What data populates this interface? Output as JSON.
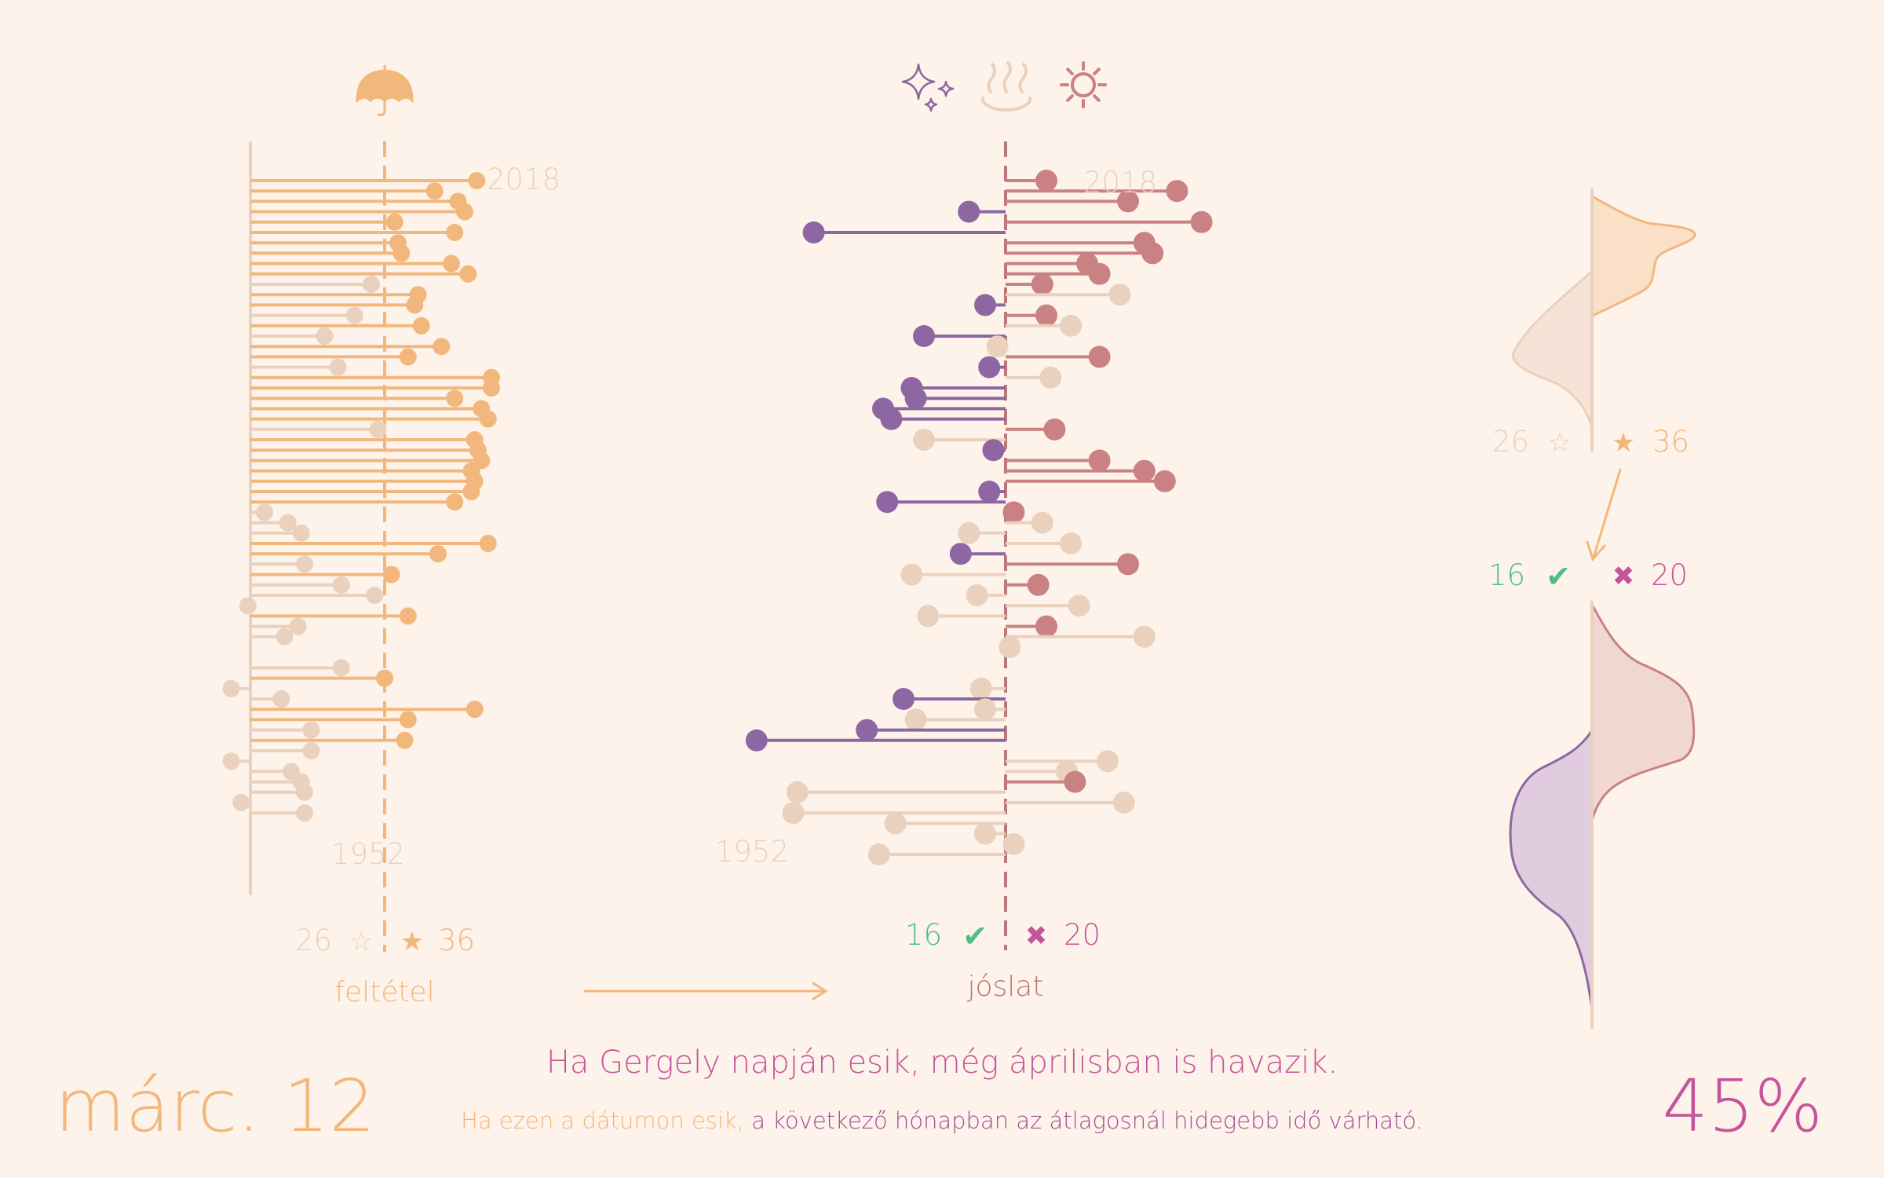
{
  "colors": {
    "background": "#fdf3ea",
    "condition_active": "#f2b77c",
    "condition_faded": "#ead1bd",
    "cold": "#8e67a2",
    "warm": "#c98183",
    "faded": "#ead1bd",
    "success": "#4dbf86",
    "fail": "#c4559a",
    "warm_axis": "#b9787a"
  },
  "icons": {
    "condition": "umbrella-icon",
    "forecast": [
      "sparkles-icon",
      "hot-spring-icon",
      "sun-icon"
    ]
  },
  "left_panel": {
    "year_top": "2018",
    "year_bottom": "1952",
    "count_no": "26",
    "count_yes": "36",
    "star_empty": "☆",
    "star_full": "★",
    "axis_label": "feltétel"
  },
  "center_panel": {
    "year_top": "2018",
    "year_bottom": "1952",
    "count_correct": "16",
    "count_wrong": "20",
    "check": "✔",
    "cross": "✖",
    "axis_label": "jóslat"
  },
  "right_panel": {
    "count_no": "26",
    "count_yes": "36",
    "count_correct": "16",
    "count_wrong": "20",
    "star_empty": "☆",
    "star_full": "★",
    "check": "✔",
    "cross": "✖"
  },
  "footer": {
    "date": "márc. 12",
    "proverb": "Ha Gergely napján esik, még áprilisban is havazik.",
    "explain_condition": "Ha ezen a dátumon esik,",
    "explain_result": "a következő hónapban az átlagosnál hidegebb idő várható.",
    "percent": "45%"
  },
  "chart_data": [
    {
      "type": "scatter",
      "title": "",
      "x_label": "feltétel",
      "y_label": "",
      "y_range": [
        1952,
        2018
      ],
      "series": [
        {
          "name": "",
          "points": [
            {
              "year": 2018,
              "value": 1.38,
              "active": true
            },
            {
              "year": 2017,
              "value": 0.75,
              "active": true
            },
            {
              "year": 2016,
              "value": 1.1,
              "active": true
            },
            {
              "year": 2015,
              "value": 1.2,
              "active": true
            },
            {
              "year": 2014,
              "value": 0.15,
              "active": true
            },
            {
              "year": 2013,
              "value": 1.05,
              "active": true
            },
            {
              "year": 2012,
              "value": 0.2,
              "active": true
            },
            {
              "year": 2011,
              "value": 0.25,
              "active": true
            },
            {
              "year": 2010,
              "value": 1.0,
              "active": true
            },
            {
              "year": 2009,
              "value": 1.25,
              "active": true
            },
            {
              "year": 2008,
              "value": -0.2,
              "active": false
            },
            {
              "year": 2007,
              "value": 0.5,
              "active": true
            },
            {
              "year": 2006,
              "value": 0.45,
              "active": true
            },
            {
              "year": 2005,
              "value": -0.45,
              "active": false
            },
            {
              "year": 2004,
              "value": 0.55,
              "active": true
            },
            {
              "year": 2003,
              "value": -0.9,
              "active": false
            },
            {
              "year": 2002,
              "value": 0.85,
              "active": true
            },
            {
              "year": 2001,
              "value": 0.35,
              "active": true
            },
            {
              "year": 2000,
              "value": -0.7,
              "active": false
            },
            {
              "year": 1999,
              "value": 1.6,
              "active": true
            },
            {
              "year": 1998,
              "value": 1.6,
              "active": true
            },
            {
              "year": 1997,
              "value": 1.05,
              "active": true
            },
            {
              "year": 1996,
              "value": 1.45,
              "active": true
            },
            {
              "year": 1995,
              "value": 1.55,
              "active": true
            },
            {
              "year": 1994,
              "value": -0.1,
              "active": false
            },
            {
              "year": 1993,
              "value": 1.35,
              "active": true
            },
            {
              "year": 1992,
              "value": 1.4,
              "active": true
            },
            {
              "year": 1991,
              "value": 1.45,
              "active": true
            },
            {
              "year": 1990,
              "value": 1.3,
              "active": true
            },
            {
              "year": 1989,
              "value": 1.35,
              "active": true
            },
            {
              "year": 1988,
              "value": 1.3,
              "active": true
            },
            {
              "year": 1987,
              "value": 1.05,
              "active": true
            },
            {
              "year": 1986,
              "value": -1.8,
              "active": false
            },
            {
              "year": 1985,
              "value": -1.45,
              "active": false
            },
            {
              "year": 1984,
              "value": -1.25,
              "active": false
            },
            {
              "year": 1983,
              "value": 1.55,
              "active": true
            },
            {
              "year": 1982,
              "value": 0.8,
              "active": true
            },
            {
              "year": 1981,
              "value": -1.2,
              "active": false
            },
            {
              "year": 1980,
              "value": 0.1,
              "active": true
            },
            {
              "year": 1979,
              "value": -0.65,
              "active": false
            },
            {
              "year": 1978,
              "value": -0.15,
              "active": false
            },
            {
              "year": 1977,
              "value": -2.05,
              "active": false
            },
            {
              "year": 1976,
              "value": 0.35,
              "active": true
            },
            {
              "year": 1975,
              "value": -1.3,
              "active": false
            },
            {
              "year": 1974,
              "value": -1.5,
              "active": false
            },
            {
              "year": 1971,
              "value": -0.65,
              "active": false
            },
            {
              "year": 1970,
              "value": 0.0,
              "active": true
            },
            {
              "year": 1969,
              "value": -2.3,
              "active": false
            },
            {
              "year": 1968,
              "value": -1.55,
              "active": false
            },
            {
              "year": 1967,
              "value": 1.35,
              "active": true
            },
            {
              "year": 1966,
              "value": 0.35,
              "active": true
            },
            {
              "year": 1965,
              "value": -1.1,
              "active": false
            },
            {
              "year": 1964,
              "value": 0.3,
              "active": true
            },
            {
              "year": 1963,
              "value": -1.1,
              "active": false
            },
            {
              "year": 1962,
              "value": -2.3,
              "active": false
            },
            {
              "year": 1961,
              "value": -1.4,
              "active": false
            },
            {
              "year": 1960,
              "value": -1.25,
              "active": false
            },
            {
              "year": 1959,
              "value": -1.2,
              "active": false
            },
            {
              "year": 1958,
              "value": -2.15,
              "active": false
            },
            {
              "year": 1957,
              "value": -1.2,
              "active": false
            }
          ]
        }
      ]
    },
    {
      "type": "scatter",
      "title": "",
      "x_label": "jóslat",
      "y_label": "",
      "y_range": [
        1952,
        2018
      ],
      "series": [
        {
          "name": "",
          "points": [
            {
              "year": 2018,
              "value": 1.0,
              "cls": "warm"
            },
            {
              "year": 2017,
              "value": 4.2,
              "cls": "warm"
            },
            {
              "year": 2016,
              "value": 3.0,
              "cls": "warm"
            },
            {
              "year": 2015,
              "value": -0.9,
              "cls": "cold"
            },
            {
              "year": 2014,
              "value": 4.8,
              "cls": "warm"
            },
            {
              "year": 2013,
              "value": -4.7,
              "cls": "cold"
            },
            {
              "year": 2012,
              "value": 3.4,
              "cls": "warm"
            },
            {
              "year": 2011,
              "value": 3.6,
              "cls": "warm"
            },
            {
              "year": 2010,
              "value": 2.0,
              "cls": "warm"
            },
            {
              "year": 2009,
              "value": 2.3,
              "cls": "warm"
            },
            {
              "year": 2008,
              "value": 0.9,
              "cls": "warm"
            },
            {
              "year": 2007,
              "value": 2.8,
              "cls": "faded"
            },
            {
              "year": 2006,
              "value": -0.5,
              "cls": "cold"
            },
            {
              "year": 2005,
              "value": 1.0,
              "cls": "warm"
            },
            {
              "year": 2004,
              "value": 1.6,
              "cls": "faded"
            },
            {
              "year": 2003,
              "value": -2.0,
              "cls": "cold"
            },
            {
              "year": 2002,
              "value": -0.2,
              "cls": "faded"
            },
            {
              "year": 2001,
              "value": 2.3,
              "cls": "warm"
            },
            {
              "year": 2000,
              "value": -0.4,
              "cls": "cold"
            },
            {
              "year": 1999,
              "value": 1.1,
              "cls": "faded"
            },
            {
              "year": 1998,
              "value": -2.3,
              "cls": "cold"
            },
            {
              "year": 1997,
              "value": -2.2,
              "cls": "cold"
            },
            {
              "year": 1996,
              "value": -3.0,
              "cls": "cold"
            },
            {
              "year": 1995,
              "value": -2.8,
              "cls": "cold"
            },
            {
              "year": 1994,
              "value": 1.2,
              "cls": "warm"
            },
            {
              "year": 1993,
              "value": -2.0,
              "cls": "faded"
            },
            {
              "year": 1992,
              "value": -0.3,
              "cls": "cold"
            },
            {
              "year": 1991,
              "value": 2.3,
              "cls": "warm"
            },
            {
              "year": 1990,
              "value": 3.4,
              "cls": "warm"
            },
            {
              "year": 1989,
              "value": 3.9,
              "cls": "warm"
            },
            {
              "year": 1988,
              "value": -0.4,
              "cls": "cold"
            },
            {
              "year": 1987,
              "value": -2.9,
              "cls": "cold"
            },
            {
              "year": 1986,
              "value": 0.2,
              "cls": "warm"
            },
            {
              "year": 1985,
              "value": 0.9,
              "cls": "faded"
            },
            {
              "year": 1984,
              "value": -0.9,
              "cls": "faded"
            },
            {
              "year": 1983,
              "value": 1.6,
              "cls": "faded"
            },
            {
              "year": 1982,
              "value": -1.1,
              "cls": "cold"
            },
            {
              "year": 1981,
              "value": 3.0,
              "cls": "warm"
            },
            {
              "year": 1980,
              "value": -2.3,
              "cls": "faded"
            },
            {
              "year": 1979,
              "value": 0.8,
              "cls": "warm"
            },
            {
              "year": 1978,
              "value": -0.7,
              "cls": "faded"
            },
            {
              "year": 1977,
              "value": 1.8,
              "cls": "faded"
            },
            {
              "year": 1976,
              "value": -1.9,
              "cls": "faded"
            },
            {
              "year": 1975,
              "value": 1.0,
              "cls": "warm"
            },
            {
              "year": 1974,
              "value": 3.4,
              "cls": "faded"
            },
            {
              "year": 1973,
              "value": 0.1,
              "cls": "faded"
            },
            {
              "year": 1969,
              "value": -0.6,
              "cls": "faded"
            },
            {
              "year": 1968,
              "value": -2.5,
              "cls": "cold"
            },
            {
              "year": 1967,
              "value": -0.5,
              "cls": "faded"
            },
            {
              "year": 1966,
              "value": -2.2,
              "cls": "faded"
            },
            {
              "year": 1965,
              "value": -3.4,
              "cls": "cold"
            },
            {
              "year": 1964,
              "value": -6.1,
              "cls": "cold"
            },
            {
              "year": 1962,
              "value": 2.5,
              "cls": "faded"
            },
            {
              "year": 1961,
              "value": 1.5,
              "cls": "faded"
            },
            {
              "year": 1960,
              "value": 1.7,
              "cls": "warm"
            },
            {
              "year": 1959,
              "value": -5.1,
              "cls": "faded"
            },
            {
              "year": 1958,
              "value": 2.9,
              "cls": "faded"
            },
            {
              "year": 1957,
              "value": -5.2,
              "cls": "faded"
            },
            {
              "year": 1956,
              "value": -2.7,
              "cls": "faded"
            },
            {
              "year": 1955,
              "value": -0.5,
              "cls": "faded"
            },
            {
              "year": 1954,
              "value": 0.2,
              "cls": "faded"
            },
            {
              "year": 1953,
              "value": -3.1,
              "cls": "faded"
            }
          ]
        }
      ]
    }
  ]
}
